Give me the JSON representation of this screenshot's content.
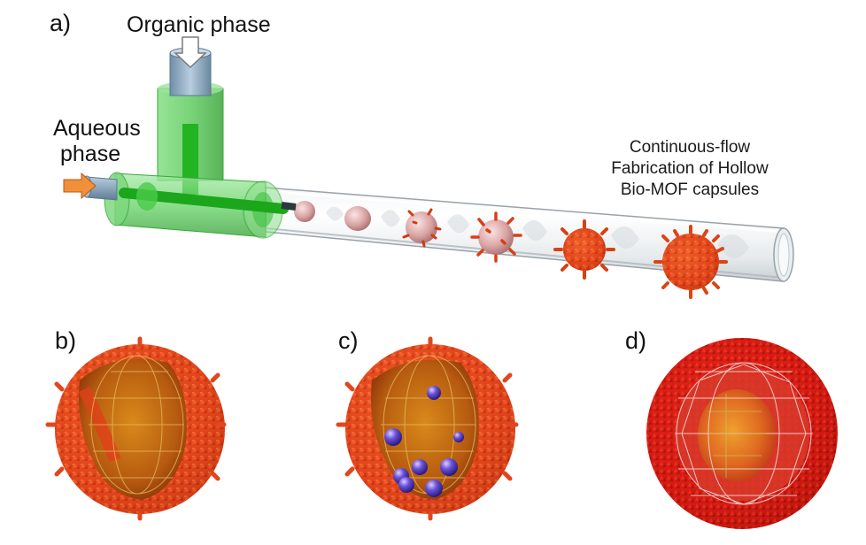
{
  "panels": {
    "a": "a)",
    "b": "b)",
    "c": "c)",
    "d": "d)"
  },
  "labels": {
    "organic": "Organic phase",
    "aqueous_line1": "Aqueous",
    "aqueous_line2": "phase",
    "caption_line1": "Continuous-flow",
    "caption_line2": "Fabrication of Hollow",
    "caption_line3": "Bio-MOF capsules"
  },
  "colors": {
    "capsule_shell": "#e0401a",
    "capsule_dark": "#b82a0c",
    "capsule_d": "#d41a12",
    "tube_green": "#4cc94c",
    "inlet_arrow": "#f0903a",
    "cargo": "#5a3cc8",
    "inlet_pipe": "#8fb0c8"
  }
}
